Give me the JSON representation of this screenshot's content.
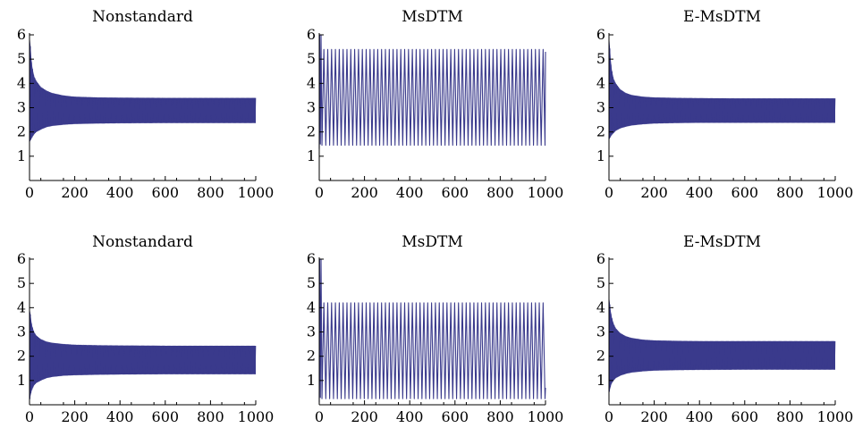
{
  "colors": {
    "series": "#3a3a8c",
    "axis": "#000000",
    "background": "#ffffff"
  },
  "chart_data": [
    {
      "type": "line",
      "title": "Nonstandard",
      "xlabel": "",
      "ylabel": "",
      "xlim": [
        0,
        1000
      ],
      "ylim": [
        0,
        6
      ],
      "x_ticks": [
        0,
        200,
        400,
        600,
        800,
        1000
      ],
      "y_ticks": [
        1,
        2,
        3,
        4,
        5,
        6
      ],
      "x_tick_labels": [
        "0",
        "200",
        "400",
        "600",
        "800",
        "1000"
      ],
      "y_tick_labels": [
        "1",
        "2",
        "3",
        "4",
        "5",
        "6"
      ],
      "style": "dense-oscillation",
      "series": [
        {
          "x": [
            0,
            5,
            10,
            20,
            30,
            50,
            75,
            100,
            150,
            200,
            300,
            400,
            600,
            800,
            1000
          ],
          "upper": [
            6.0,
            5.5,
            4.8,
            4.3,
            4.1,
            3.85,
            3.7,
            3.6,
            3.5,
            3.45,
            3.42,
            3.41,
            3.4,
            3.4,
            3.4
          ],
          "lower": [
            1.6,
            1.65,
            1.75,
            1.9,
            2.0,
            2.1,
            2.2,
            2.25,
            2.3,
            2.33,
            2.35,
            2.36,
            2.37,
            2.37,
            2.37
          ]
        }
      ]
    },
    {
      "type": "line",
      "title": "MsDTM",
      "xlabel": "",
      "ylabel": "",
      "xlim": [
        0,
        1000
      ],
      "ylim": [
        0,
        6
      ],
      "x_ticks": [
        0,
        200,
        400,
        600,
        800,
        1000
      ],
      "y_ticks": [
        1,
        2,
        3,
        4,
        5,
        6
      ],
      "x_tick_labels": [
        "0",
        "200",
        "400",
        "600",
        "800",
        "1000"
      ],
      "y_tick_labels": [
        "1",
        "2",
        "3",
        "4",
        "5",
        "6"
      ],
      "style": "regular-oscillation",
      "series": [
        {
          "x_start": 0,
          "x_end": 1000,
          "period": 17,
          "initial_high": 6.0,
          "initial_low": 1.3,
          "upper": 5.4,
          "lower": 1.45,
          "end_value": 5.3
        }
      ]
    },
    {
      "type": "line",
      "title": "E-MsDTM",
      "xlabel": "",
      "ylabel": "",
      "xlim": [
        0,
        1000
      ],
      "ylim": [
        0,
        6
      ],
      "x_ticks": [
        0,
        200,
        400,
        600,
        800,
        1000
      ],
      "y_ticks": [
        1,
        2,
        3,
        4,
        5,
        6
      ],
      "x_tick_labels": [
        "0",
        "200",
        "400",
        "600",
        "800",
        "1000"
      ],
      "y_tick_labels": [
        "1",
        "2",
        "3",
        "4",
        "5",
        "6"
      ],
      "style": "dense-oscillation",
      "series": [
        {
          "x": [
            0,
            5,
            10,
            20,
            30,
            50,
            75,
            100,
            150,
            200,
            300,
            400,
            600,
            800,
            1000
          ],
          "upper": [
            6.0,
            5.4,
            4.7,
            4.2,
            4.0,
            3.75,
            3.6,
            3.52,
            3.45,
            3.42,
            3.4,
            3.39,
            3.38,
            3.38,
            3.38
          ],
          "lower": [
            1.7,
            1.75,
            1.85,
            1.95,
            2.05,
            2.15,
            2.22,
            2.27,
            2.32,
            2.35,
            2.37,
            2.38,
            2.38,
            2.38,
            2.38
          ]
        }
      ]
    },
    {
      "type": "line",
      "title": "Nonstandard",
      "xlabel": "",
      "ylabel": "",
      "xlim": [
        0,
        1000
      ],
      "ylim": [
        0,
        6
      ],
      "x_ticks": [
        0,
        200,
        400,
        600,
        800,
        1000
      ],
      "y_ticks": [
        1,
        2,
        3,
        4,
        5,
        6
      ],
      "x_tick_labels": [
        "0",
        "200",
        "400",
        "600",
        "800",
        "1000"
      ],
      "y_tick_labels": [
        "1",
        "2",
        "3",
        "4",
        "5",
        "6"
      ],
      "style": "dense-oscillation",
      "series": [
        {
          "x": [
            0,
            5,
            10,
            20,
            30,
            50,
            75,
            100,
            150,
            200,
            300,
            400,
            600,
            800,
            1000
          ],
          "upper": [
            4.0,
            3.7,
            3.3,
            3.0,
            2.85,
            2.7,
            2.6,
            2.55,
            2.5,
            2.47,
            2.45,
            2.44,
            2.43,
            2.43,
            2.43
          ],
          "lower": [
            0.1,
            0.4,
            0.6,
            0.8,
            0.9,
            1.0,
            1.1,
            1.15,
            1.2,
            1.22,
            1.24,
            1.25,
            1.26,
            1.26,
            1.26
          ]
        }
      ]
    },
    {
      "type": "line",
      "title": "MsDTM",
      "xlabel": "",
      "ylabel": "",
      "xlim": [
        0,
        1000
      ],
      "ylim": [
        0,
        6
      ],
      "x_ticks": [
        0,
        200,
        400,
        600,
        800,
        1000
      ],
      "y_ticks": [
        1,
        2,
        3,
        4,
        5,
        6
      ],
      "x_tick_labels": [
        "0",
        "200",
        "400",
        "600",
        "800",
        "1000"
      ],
      "y_tick_labels": [
        "1",
        "2",
        "3",
        "4",
        "5",
        "6"
      ],
      "style": "regular-oscillation",
      "series": [
        {
          "x_start": 0,
          "x_end": 1000,
          "period": 17,
          "initial_high": 6.0,
          "initial_low": 0.1,
          "upper": 4.2,
          "lower": 0.25,
          "end_value": 0.7
        }
      ]
    },
    {
      "type": "line",
      "title": "E-MsDTM",
      "xlabel": "",
      "ylabel": "",
      "xlim": [
        0,
        1000
      ],
      "ylim": [
        0,
        6
      ],
      "x_ticks": [
        0,
        200,
        400,
        600,
        800,
        1000
      ],
      "y_ticks": [
        1,
        2,
        3,
        4,
        5,
        6
      ],
      "x_tick_labels": [
        "0",
        "200",
        "400",
        "600",
        "800",
        "1000"
      ],
      "y_tick_labels": [
        "1",
        "2",
        "3",
        "4",
        "5",
        "6"
      ],
      "style": "dense-oscillation",
      "series": [
        {
          "x": [
            0,
            5,
            10,
            20,
            30,
            50,
            75,
            100,
            150,
            200,
            300,
            400,
            600,
            800,
            1000
          ],
          "upper": [
            4.5,
            4.1,
            3.7,
            3.35,
            3.15,
            2.95,
            2.82,
            2.75,
            2.68,
            2.65,
            2.63,
            2.62,
            2.62,
            2.62,
            2.62
          ],
          "lower": [
            0.45,
            0.65,
            0.85,
            1.0,
            1.1,
            1.2,
            1.28,
            1.33,
            1.38,
            1.41,
            1.43,
            1.44,
            1.45,
            1.45,
            1.45
          ]
        }
      ]
    }
  ]
}
